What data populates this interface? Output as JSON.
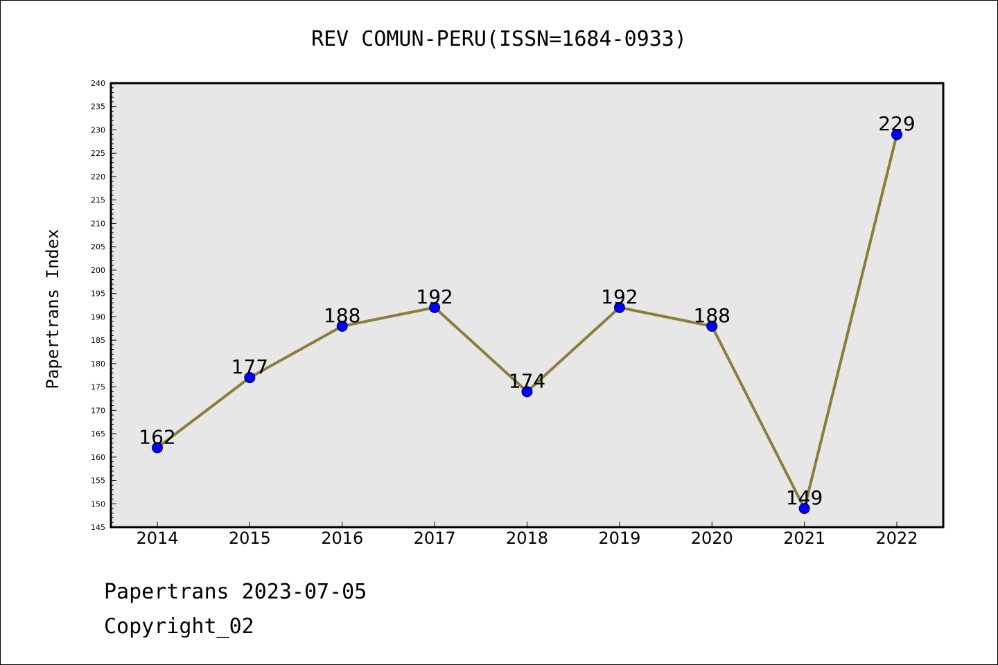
{
  "chart_data": {
    "type": "line",
    "title": "REV COMUN-PERU(ISSN=1684-0933)",
    "xlabel": "",
    "ylabel": "Papertrans Index",
    "categories": [
      "2014",
      "2015",
      "2016",
      "2017",
      "2018",
      "2019",
      "2020",
      "2021",
      "2022"
    ],
    "values": [
      162,
      177,
      188,
      192,
      174,
      192,
      188,
      149,
      229
    ],
    "ylim": [
      145,
      240
    ],
    "ytick_step": 5,
    "grid": false,
    "line_color": "#8b7d3a",
    "marker_color": "#0000ff",
    "plot_background": "#e7e7e7"
  },
  "footer": {
    "line1": "Papertrans 2023-07-05",
    "line2": "Copyright_02"
  }
}
